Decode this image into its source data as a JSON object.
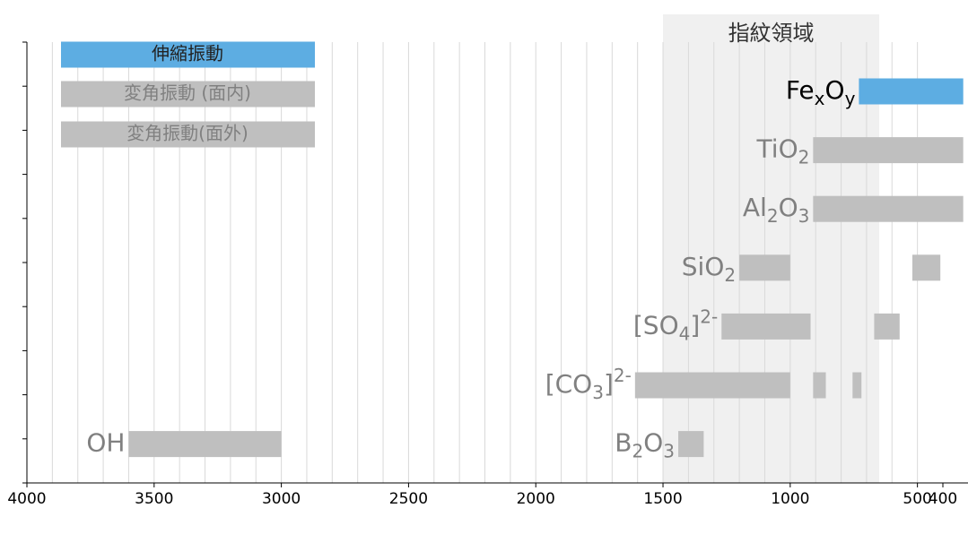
{
  "chart_data": {
    "type": "range",
    "xlim": [
      4000,
      400
    ],
    "xticks": [
      4000,
      3500,
      3000,
      2500,
      2000,
      1500,
      1000,
      500,
      400
    ],
    "xgrid": [
      3900,
      3800,
      3700,
      3600,
      3500,
      3400,
      3300,
      3200,
      3100,
      3000,
      2900,
      2800,
      2700,
      2600,
      2500,
      2400,
      2300,
      2200,
      2100,
      2000,
      1900,
      1800,
      1700,
      1600,
      1500,
      1400,
      1300,
      1200,
      1100,
      1000,
      900,
      800,
      700,
      600,
      500
    ],
    "band": {
      "label": "指紋領域",
      "range": [
        1500,
        650
      ]
    },
    "legend": [
      {
        "name": "伸縮振動",
        "color": "#5dade2"
      },
      {
        "name": "変角振動 (面内)",
        "color": "#bfbfbf"
      },
      {
        "name": "変角振動(面外)",
        "color": "#bfbfbf"
      }
    ],
    "rows": [
      {
        "items": [
          {
            "label": [
              {
                "t": "Fe"
              },
              {
                "sub": "x"
              },
              {
                "t": "O"
              },
              {
                "sub": "y"
              }
            ],
            "color": "#5dade2",
            "ranges": [
              [
                730,
                320
              ]
            ]
          }
        ]
      },
      {
        "items": [
          {
            "label": [
              {
                "t": "TiO"
              },
              {
                "sub": "2"
              }
            ],
            "color": "#bfbfbf",
            "ranges": [
              [
                910,
                320
              ]
            ]
          }
        ]
      },
      {
        "items": [
          {
            "label": [
              {
                "t": "Al"
              },
              {
                "sub": "2"
              },
              {
                "t": "O"
              },
              {
                "sub": "3"
              }
            ],
            "color": "#bfbfbf",
            "ranges": [
              [
                910,
                320
              ]
            ]
          }
        ]
      },
      {
        "items": [
          {
            "label": [
              {
                "t": "SiO"
              },
              {
                "sub": "2"
              }
            ],
            "color": "#bfbfbf",
            "ranges": [
              [
                1200,
                1000
              ],
              [
                520,
                410
              ]
            ]
          }
        ]
      },
      {
        "items": [
          {
            "label": [
              {
                "t": "[SO"
              },
              {
                "sub": "4"
              },
              {
                "t": "]"
              },
              {
                "sup": "2-"
              }
            ],
            "color": "#bfbfbf",
            "ranges": [
              [
                1270,
                920
              ],
              [
                670,
                570
              ]
            ]
          }
        ]
      },
      {
        "items": [
          {
            "label": [
              {
                "t": "[CO"
              },
              {
                "sub": "3"
              },
              {
                "t": "]"
              },
              {
                "sup": "2-"
              }
            ],
            "color": "#bfbfbf",
            "ranges": [
              [
                1610,
                1000
              ],
              [
                910,
                860
              ],
              [
                755,
                720
              ]
            ]
          }
        ]
      },
      {
        "items": [
          {
            "label": [
              {
                "t": "B"
              },
              {
                "sub": "2"
              },
              {
                "t": "O"
              },
              {
                "sub": "3"
              }
            ],
            "color": "#bfbfbf",
            "ranges": [
              [
                1440,
                1340
              ]
            ]
          },
          {
            "label": [
              {
                "t": "OH"
              }
            ],
            "color": "#bfbfbf",
            "ranges": [
              [
                3600,
                3000
              ]
            ]
          }
        ]
      }
    ]
  }
}
